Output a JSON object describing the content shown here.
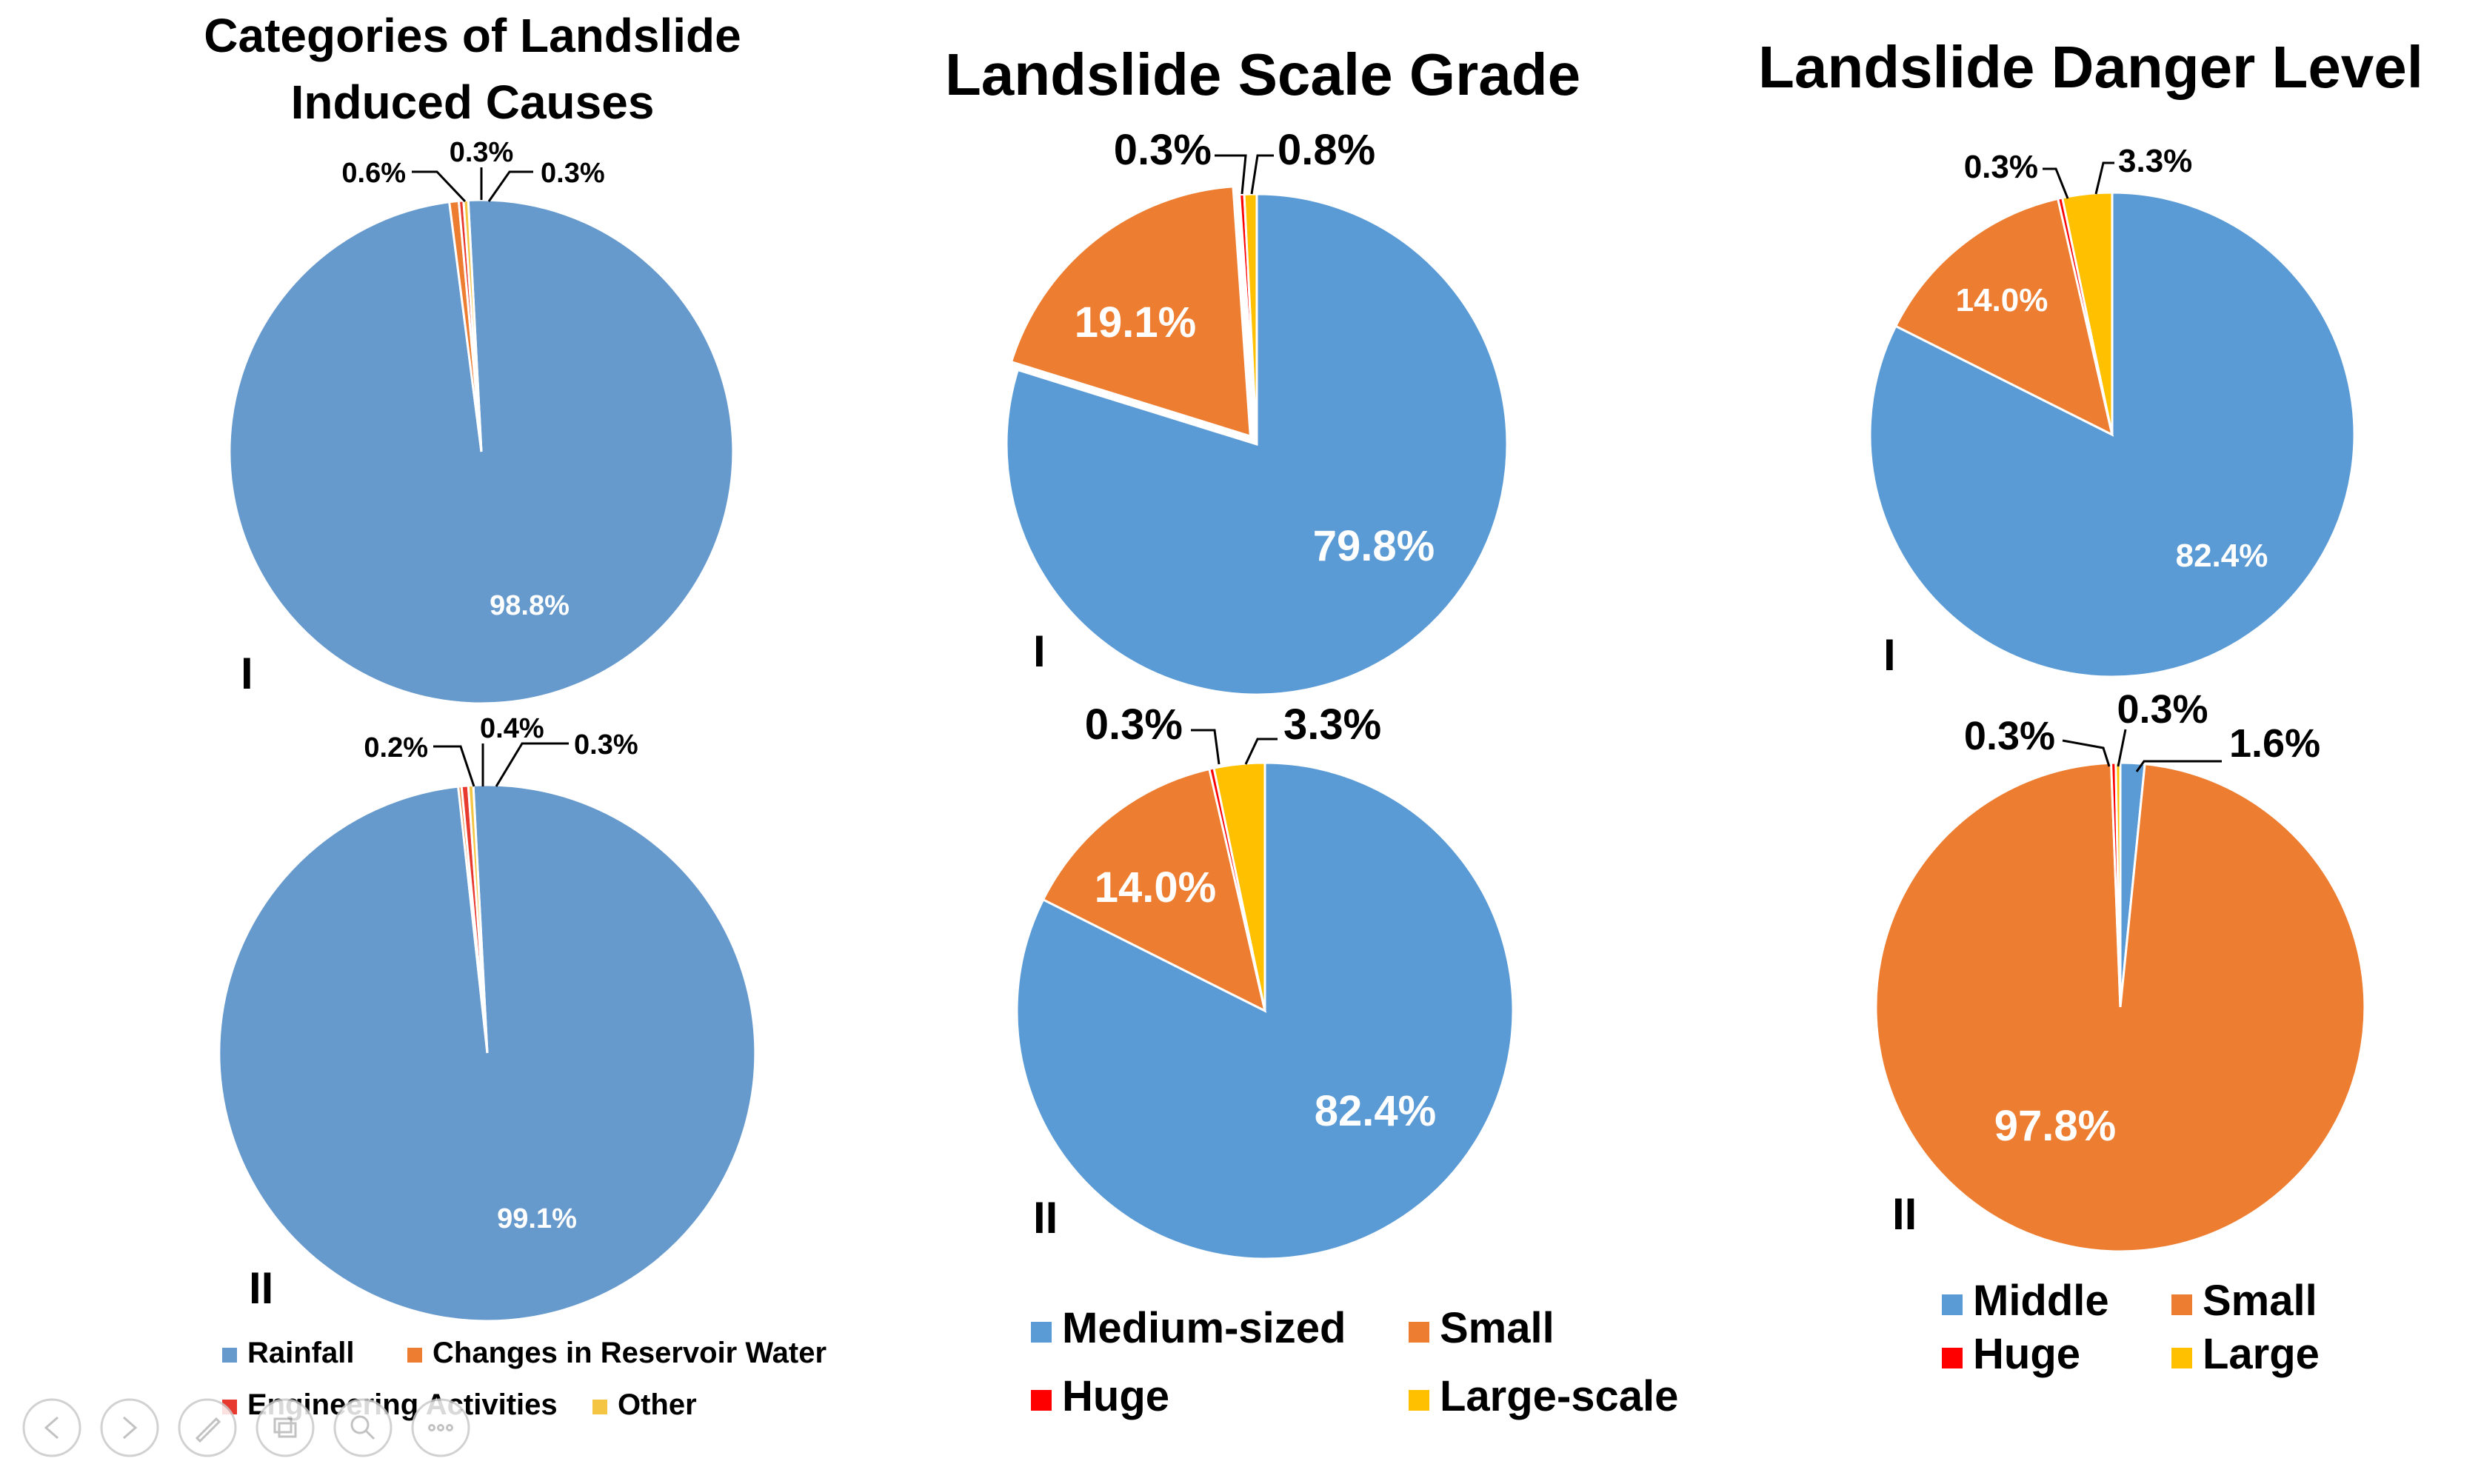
{
  "colors": {
    "rainfall": "#6699CC",
    "blue": "#5B9BD5",
    "orange": "#ED7D31",
    "huge": "#FF0000",
    "engineering": "#E8392E",
    "yellow": "#FFC000",
    "other": "#F4C443"
  },
  "chart_data": [
    {
      "type": "pie",
      "title": [
        "Categories of Landslide",
        "Induced Causes"
      ],
      "legend": [
        {
          "label": "Rainfall",
          "color": "#6699CC"
        },
        {
          "label": "Changes in Reservoir Water",
          "color": "#ED7D31"
        },
        {
          "label": "Engineering Activities",
          "color": "#E8392E"
        },
        {
          "label": "Other",
          "color": "#F4C443"
        }
      ],
      "pies": [
        {
          "panel": "I",
          "slices": [
            {
              "name": "Rainfall",
              "value": 98.8,
              "label": "98.8%",
              "color": "#6699CC"
            },
            {
              "name": "Changes in Reservoir Water",
              "value": 0.6,
              "label": "0.6%",
              "color": "#ED7D31"
            },
            {
              "name": "Engineering Activities",
              "value": 0.3,
              "label": "0.3%",
              "color": "#E8392E"
            },
            {
              "name": "Other",
              "value": 0.3,
              "label": "0.3%",
              "color": "#F4C443"
            }
          ]
        },
        {
          "panel": "II",
          "slices": [
            {
              "name": "Rainfall",
              "value": 99.1,
              "label": "99.1%",
              "color": "#6699CC"
            },
            {
              "name": "Changes in Reservoir Water",
              "value": 0.2,
              "label": "0.2%",
              "color": "#ED7D31"
            },
            {
              "name": "Engineering Activities",
              "value": 0.4,
              "label": "0.4%",
              "color": "#E8392E"
            },
            {
              "name": "Other",
              "value": 0.3,
              "label": "0.3%",
              "color": "#F4C443"
            }
          ]
        }
      ]
    },
    {
      "type": "pie",
      "title": [
        "Landslide Scale Grade"
      ],
      "legend": [
        {
          "label": "Medium-sized",
          "color": "#5B9BD5"
        },
        {
          "label": "Small",
          "color": "#ED7D31"
        },
        {
          "label": "Huge",
          "color": "#FF0000"
        },
        {
          "label": "Large-scale",
          "color": "#FFC000"
        }
      ],
      "pies": [
        {
          "panel": "I",
          "slices": [
            {
              "name": "Medium-sized",
              "value": 79.8,
              "label": "79.8%",
              "color": "#5B9BD5"
            },
            {
              "name": "Small",
              "value": 19.1,
              "label": "19.1%",
              "color": "#ED7D31"
            },
            {
              "name": "Huge",
              "value": 0.3,
              "label": "0.3%",
              "color": "#FF0000"
            },
            {
              "name": "Large-scale",
              "value": 0.8,
              "label": "0.8%",
              "color": "#FFC000"
            }
          ]
        },
        {
          "panel": "II",
          "slices": [
            {
              "name": "Medium-sized",
              "value": 82.4,
              "label": "82.4%",
              "color": "#5B9BD5"
            },
            {
              "name": "Small",
              "value": 14.0,
              "label": "14.0%",
              "color": "#ED7D31"
            },
            {
              "name": "Huge",
              "value": 0.3,
              "label": "0.3%",
              "color": "#FF0000"
            },
            {
              "name": "Large-scale",
              "value": 3.3,
              "label": "3.3%",
              "color": "#FFC000"
            }
          ]
        }
      ]
    },
    {
      "type": "pie",
      "title": [
        "Landslide Danger Level"
      ],
      "legend": [
        {
          "label": "Middle",
          "color": "#5B9BD5"
        },
        {
          "label": "Small",
          "color": "#ED7D31"
        },
        {
          "label": "Huge",
          "color": "#FF0000"
        },
        {
          "label": "Large",
          "color": "#FFC000"
        }
      ],
      "pies": [
        {
          "panel": "I",
          "slices": [
            {
              "name": "Middle",
              "value": 82.4,
              "label": "82.4%",
              "color": "#5B9BD5"
            },
            {
              "name": "Small",
              "value": 14.0,
              "label": "14.0%",
              "color": "#ED7D31"
            },
            {
              "name": "Huge",
              "value": 0.3,
              "label": "0.3%",
              "color": "#FF0000"
            },
            {
              "name": "Large",
              "value": 3.3,
              "label": "3.3%",
              "color": "#FFC000"
            }
          ]
        },
        {
          "panel": "II",
          "slices": [
            {
              "name": "Middle",
              "value": 1.6,
              "label": "1.6%",
              "color": "#5B9BD5"
            },
            {
              "name": "Small",
              "value": 97.8,
              "label": "97.8%",
              "color": "#ED7D31"
            },
            {
              "name": "Huge",
              "value": 0.3,
              "label": "0.3%",
              "color": "#FF0000"
            },
            {
              "name": "Large",
              "value": 0.3,
              "label": "0.3%",
              "color": "#FFC000"
            }
          ]
        }
      ]
    }
  ],
  "slideshow_controls": [
    {
      "name": "previous-slide-button",
      "icon": "arrow-left-icon"
    },
    {
      "name": "next-slide-button",
      "icon": "arrow-right-icon"
    },
    {
      "name": "pen-tool-button",
      "icon": "pen-icon"
    },
    {
      "name": "see-all-slides-button",
      "icon": "slides-icon"
    },
    {
      "name": "zoom-button",
      "icon": "magnifier-icon"
    },
    {
      "name": "more-options-button",
      "icon": "ellipsis-icon"
    }
  ]
}
